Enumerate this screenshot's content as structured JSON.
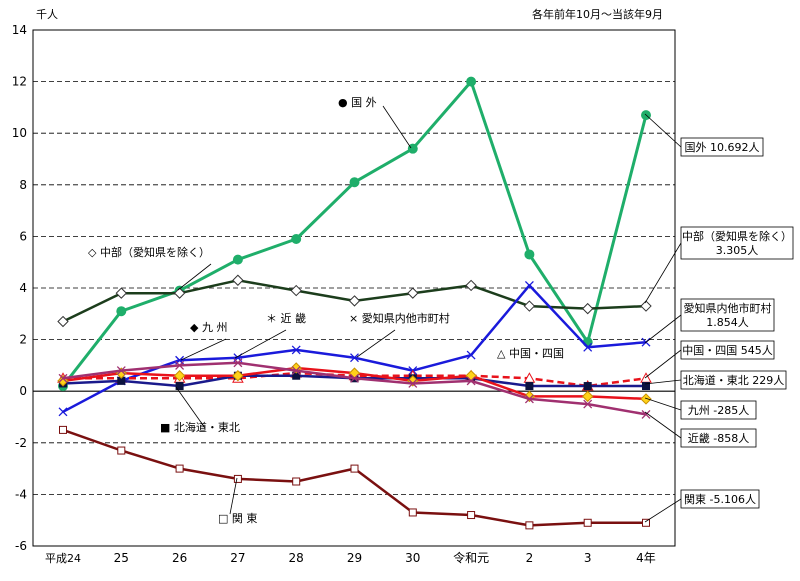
{
  "chart_data": {
    "type": "line",
    "unit_label": "千人",
    "period_note": "各年前年10月～当該年9月",
    "ylim": [
      -6,
      14
    ],
    "yticks": [
      -6,
      -4,
      -2,
      0,
      2,
      4,
      6,
      8,
      10,
      12,
      14
    ],
    "categories": [
      "平成24",
      "25",
      "26",
      "27",
      "28",
      "29",
      "30",
      "令和元",
      "2",
      "3",
      "4年"
    ],
    "series": [
      {
        "name": "国外",
        "color": "#1fae6a",
        "marker": "dot",
        "dash": false,
        "width": 3,
        "values": [
          0.2,
          3.1,
          3.9,
          5.1,
          5.9,
          8.1,
          9.4,
          12.0,
          5.3,
          1.9,
          10.7
        ]
      },
      {
        "name": "中部（愛知県を除く）",
        "color": "#1c3d1c",
        "marker": "diamond-open",
        "dash": false,
        "width": 2.5,
        "values": [
          2.7,
          3.8,
          3.8,
          4.3,
          3.9,
          3.5,
          3.8,
          4.1,
          3.3,
          3.2,
          3.3
        ]
      },
      {
        "name": "愛知県内他市町村",
        "color": "#1a1adb",
        "marker": "x",
        "dash": false,
        "width": 2.5,
        "values": [
          -0.8,
          0.4,
          1.2,
          1.3,
          1.6,
          1.3,
          0.8,
          1.4,
          4.1,
          1.7,
          1.9
        ]
      },
      {
        "name": "中国・四国",
        "color": "#e8121b",
        "marker": "triangle-open",
        "dash": true,
        "width": 2.5,
        "values": [
          0.5,
          0.5,
          0.5,
          0.5,
          0.7,
          0.6,
          0.6,
          0.6,
          0.5,
          0.2,
          0.5
        ]
      },
      {
        "name": "北海道・東北",
        "color": "#1a1a8c",
        "marker": "square",
        "dash": false,
        "width": 2.5,
        "values": [
          0.3,
          0.4,
          0.2,
          0.6,
          0.6,
          0.5,
          0.5,
          0.5,
          0.2,
          0.2,
          0.2
        ]
      },
      {
        "name": "九州",
        "color": "#e8121b",
        "marker": "diamond-yellow",
        "dash": false,
        "width": 2.5,
        "values": [
          0.4,
          0.7,
          0.6,
          0.6,
          0.9,
          0.7,
          0.4,
          0.6,
          -0.2,
          -0.2,
          -0.3
        ]
      },
      {
        "name": "近畿",
        "color": "#a03070",
        "marker": "x",
        "dash": false,
        "width": 2.5,
        "values": [
          0.5,
          0.8,
          1.0,
          1.1,
          0.8,
          0.5,
          0.3,
          0.4,
          -0.3,
          -0.5,
          -0.9
        ]
      },
      {
        "name": "関東",
        "color": "#7a1010",
        "marker": "square-open",
        "dash": false,
        "width": 2.5,
        "values": [
          -1.5,
          -2.3,
          -3.0,
          -3.4,
          -3.5,
          -3.0,
          -4.7,
          -4.8,
          -5.2,
          -5.1,
          -5.1
        ]
      }
    ],
    "series_labels": [
      {
        "key": "kokugai",
        "text": "● 国 外"
      },
      {
        "key": "chubu",
        "text": "◇ 中部（愛知県を除く）"
      },
      {
        "key": "kyushu",
        "text": "◆ 九 州"
      },
      {
        "key": "kinki",
        "text": "＊ 近 畿"
      },
      {
        "key": "aichi",
        "text": "× 愛知県内他市町村"
      },
      {
        "key": "chugoku",
        "text": "△ 中国・四国"
      },
      {
        "key": "hokkaido",
        "text": "■ 北海道・東北"
      },
      {
        "key": "kanto",
        "text": "□ 関 東"
      }
    ],
    "end_labels": [
      {
        "key": "kokugai",
        "lines": [
          "国外 10.692人"
        ]
      },
      {
        "key": "chubu",
        "lines": [
          "中部（愛知県を除く）",
          "3.305人"
        ]
      },
      {
        "key": "aichi",
        "lines": [
          "愛知県内他市町村",
          "1.854人"
        ]
      },
      {
        "key": "chugoku",
        "lines": [
          "中国・四国 545人"
        ]
      },
      {
        "key": "hokkaido",
        "lines": [
          "北海道・東北 229人"
        ]
      },
      {
        "key": "kyushu",
        "lines": [
          "九州 -285人"
        ]
      },
      {
        "key": "kinki",
        "lines": [
          "近畿 -858人"
        ]
      },
      {
        "key": "kanto",
        "lines": [
          "関東 -5.106人"
        ]
      }
    ]
  }
}
